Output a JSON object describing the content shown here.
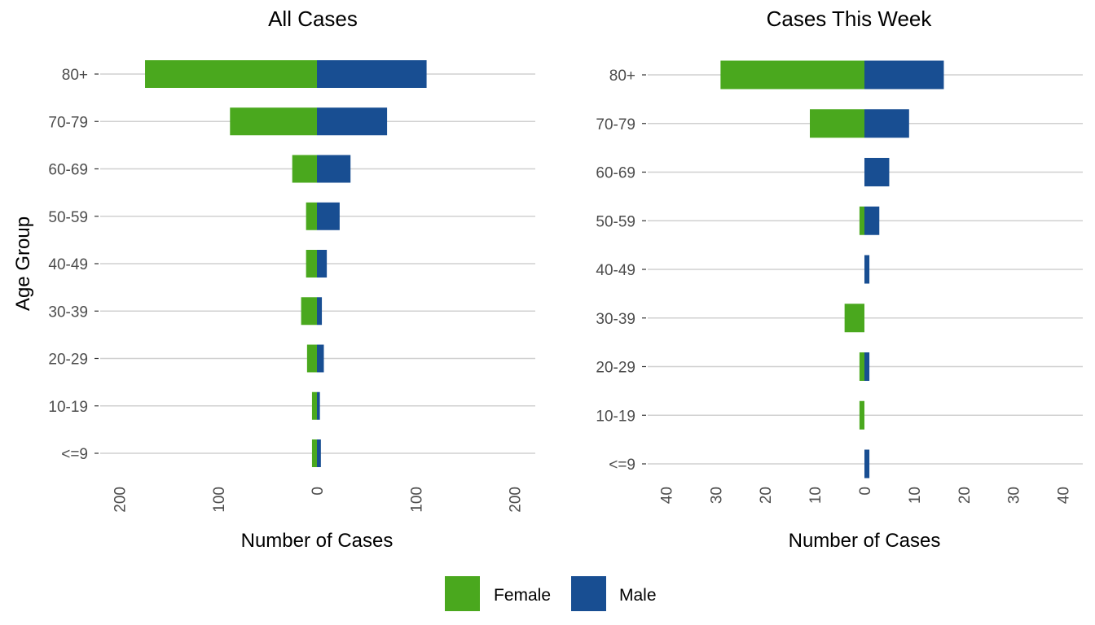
{
  "chart_data": [
    {
      "type": "bar",
      "orientation": "horizontal",
      "layout": "population-pyramid",
      "title": "All Cases",
      "xlabel": "Number of Cases",
      "ylabel": "Age Group",
      "categories": [
        "<=9",
        "10-19",
        "20-29",
        "30-39",
        "40-49",
        "50-59",
        "60-69",
        "70-79",
        "80+"
      ],
      "series": [
        {
          "name": "Female",
          "color": "#4aa81e",
          "side": "left",
          "values": [
            5,
            5,
            10,
            16,
            11,
            11,
            25,
            88,
            174
          ]
        },
        {
          "name": "Male",
          "color": "#184e92",
          "side": "right",
          "values": [
            4,
            3,
            7,
            5,
            10,
            23,
            34,
            71,
            111
          ]
        }
      ],
      "xlim": [
        -200,
        200
      ],
      "xticks": [
        -200,
        -100,
        0,
        100,
        200
      ],
      "xtick_labels": [
        "200",
        "100",
        "0",
        "100",
        "200"
      ],
      "grid": true
    },
    {
      "type": "bar",
      "orientation": "horizontal",
      "layout": "population-pyramid",
      "title": "Cases This Week",
      "xlabel": "Number of Cases",
      "ylabel": "",
      "categories": [
        "<=9",
        "10-19",
        "20-29",
        "30-39",
        "40-49",
        "50-59",
        "60-69",
        "70-79",
        "80+"
      ],
      "series": [
        {
          "name": "Female",
          "color": "#4aa81e",
          "side": "left",
          "values": [
            0,
            1,
            1,
            4,
            0,
            1,
            0,
            11,
            29
          ]
        },
        {
          "name": "Male",
          "color": "#184e92",
          "side": "right",
          "values": [
            1,
            0,
            1,
            0,
            1,
            3,
            5,
            9,
            16
          ]
        }
      ],
      "xlim": [
        -40,
        40
      ],
      "xticks": [
        -40,
        -30,
        -20,
        -10,
        0,
        10,
        20,
        30,
        40
      ],
      "xtick_labels": [
        "40",
        "30",
        "20",
        "10",
        "0",
        "10",
        "20",
        "30",
        "40"
      ],
      "grid": true
    }
  ],
  "legend": {
    "placement": "bottom",
    "items": [
      {
        "label": "Female",
        "color": "#4aa81e"
      },
      {
        "label": "Male",
        "color": "#184e92"
      }
    ]
  }
}
